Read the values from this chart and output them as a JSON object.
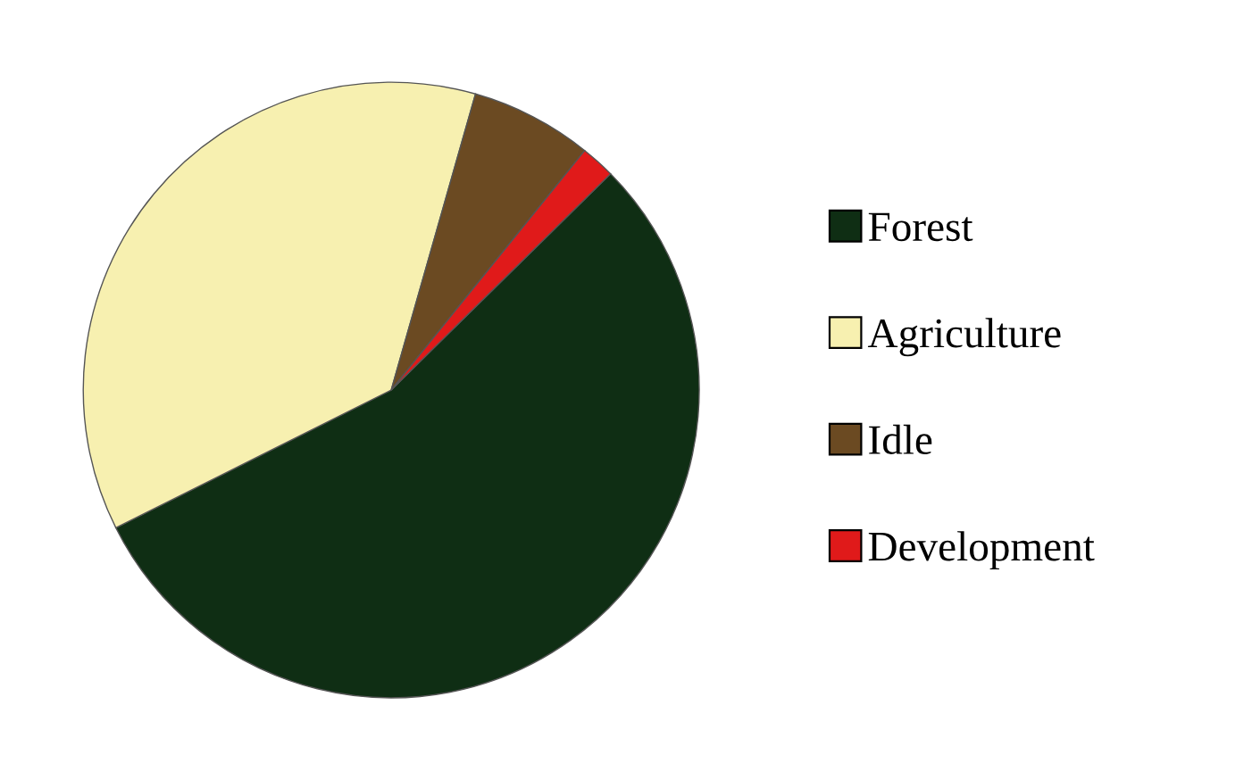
{
  "chart_data": {
    "type": "pie",
    "categories": [
      "Forest",
      "Agriculture",
      "Idle",
      "Development"
    ],
    "values": [
      55.0,
      36.8,
      6.4,
      1.8
    ],
    "colors": [
      "#0f2e14",
      "#f7f0b0",
      "#6b4a22",
      "#e01a1a"
    ],
    "legend": "right"
  }
}
